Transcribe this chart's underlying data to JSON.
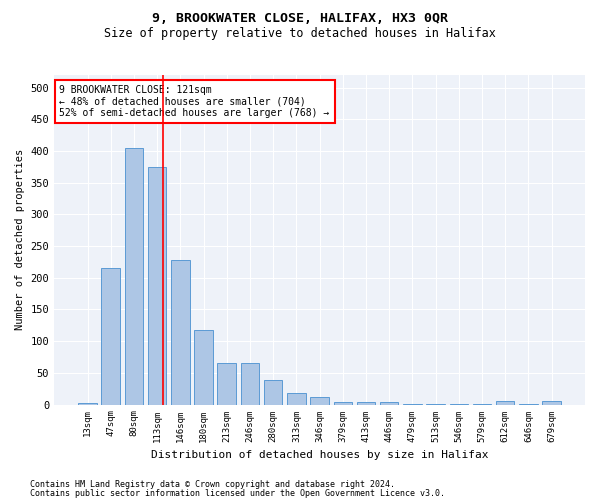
{
  "title": "9, BROOKWATER CLOSE, HALIFAX, HX3 0QR",
  "subtitle": "Size of property relative to detached houses in Halifax",
  "xlabel": "Distribution of detached houses by size in Halifax",
  "ylabel": "Number of detached properties",
  "categories": [
    "13sqm",
    "47sqm",
    "80sqm",
    "113sqm",
    "146sqm",
    "180sqm",
    "213sqm",
    "246sqm",
    "280sqm",
    "313sqm",
    "346sqm",
    "379sqm",
    "413sqm",
    "446sqm",
    "479sqm",
    "513sqm",
    "546sqm",
    "579sqm",
    "612sqm",
    "646sqm",
    "679sqm"
  ],
  "values": [
    3,
    215,
    405,
    375,
    228,
    118,
    65,
    65,
    38,
    18,
    12,
    4,
    4,
    4,
    1,
    1,
    1,
    1,
    6,
    1,
    5
  ],
  "bar_color": "#adc6e5",
  "bar_edge_color": "#5b9bd5",
  "vline_color": "red",
  "vline_pos": 3.25,
  "annotation_text": "9 BROOKWATER CLOSE: 121sqm\n← 48% of detached houses are smaller (704)\n52% of semi-detached houses are larger (768) →",
  "annotation_box_color": "white",
  "annotation_box_edge": "red",
  "ylim": [
    0,
    520
  ],
  "yticks": [
    0,
    50,
    100,
    150,
    200,
    250,
    300,
    350,
    400,
    450,
    500
  ],
  "footer1": "Contains HM Land Registry data © Crown copyright and database right 2024.",
  "footer2": "Contains public sector information licensed under the Open Government Licence v3.0.",
  "bg_color": "#eef2f9",
  "title_fontsize": 9.5,
  "subtitle_fontsize": 8.5,
  "bar_width": 0.8
}
